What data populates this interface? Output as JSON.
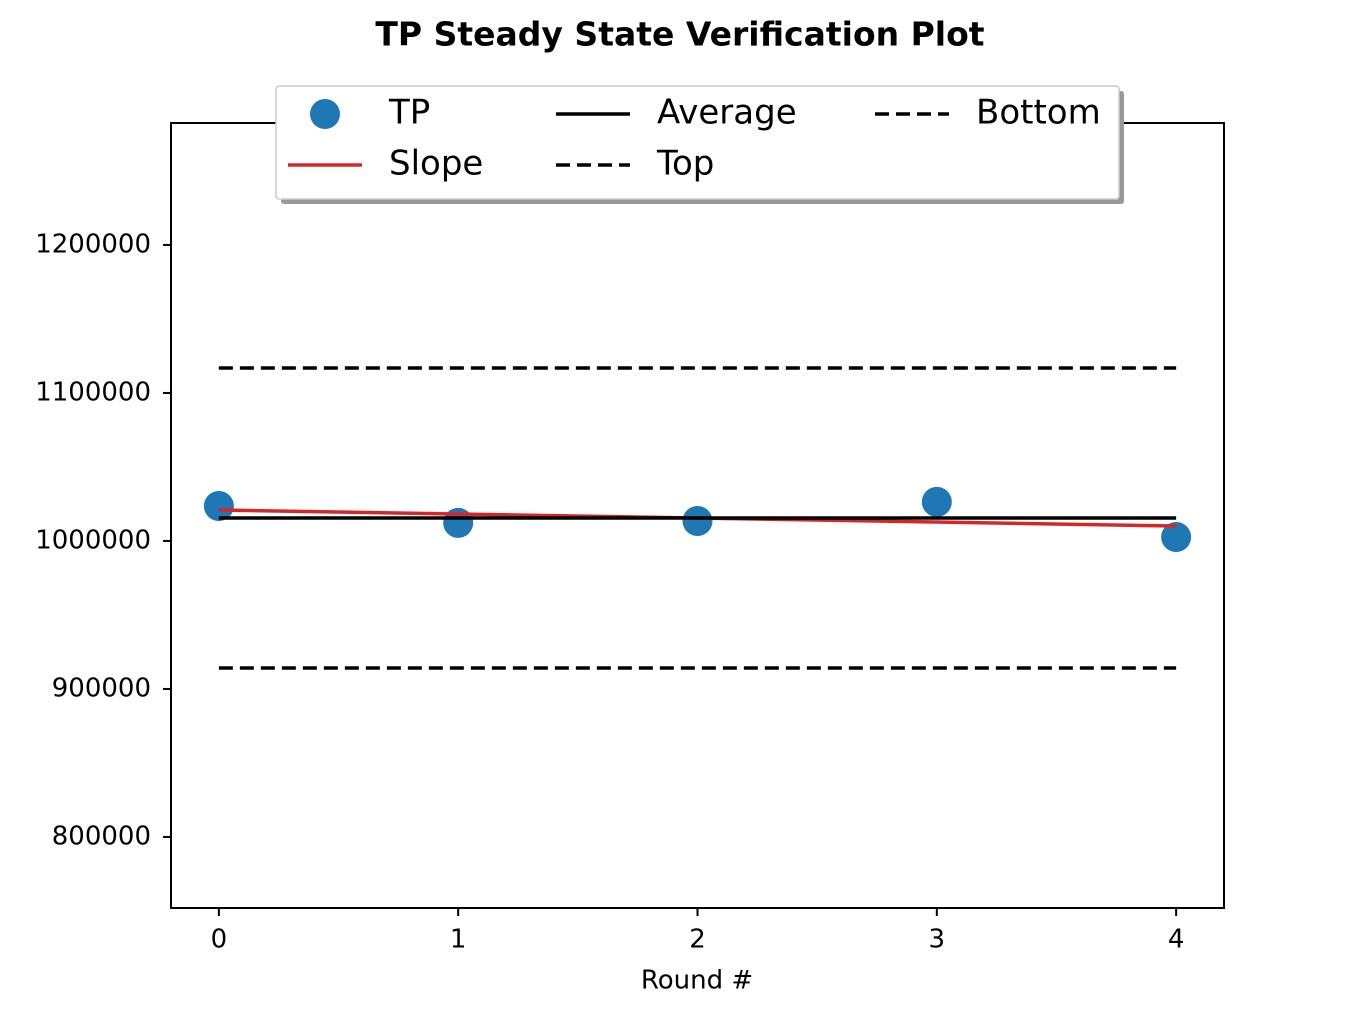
{
  "chart_data": {
    "type": "line",
    "title": "TP Steady State Verification Plot",
    "x_label": "Round #",
    "xlim": [
      -0.2,
      4.2
    ],
    "xticks": [
      0,
      1,
      2,
      3,
      4
    ],
    "ylim": [
      752000,
      1282400
    ],
    "yticks": [
      800000,
      900000,
      1000000,
      1100000,
      1200000
    ],
    "legend": "upper center",
    "series": [
      {
        "name": "TP",
        "style": "marker",
        "color": "#1f77b4",
        "x": [
          0,
          1,
          2,
          3,
          4
        ],
        "values": [
          1023600,
          1012200,
          1013500,
          1026400,
          1002700
        ]
      },
      {
        "name": "Slope",
        "style": "solid",
        "color": "#d62728",
        "x": [
          0,
          4
        ],
        "values": [
          1020900,
          1010100
        ]
      },
      {
        "name": "Average",
        "style": "solid",
        "color": "#000000",
        "x": [
          0,
          4
        ],
        "values": [
          1015500,
          1015500
        ]
      },
      {
        "name": "Top",
        "style": "dashed",
        "color": "#000000",
        "x": [
          0,
          4
        ],
        "values": [
          1116900,
          1116900
        ]
      },
      {
        "name": "Bottom",
        "style": "dashed",
        "color": "#000000",
        "x": [
          0,
          4
        ],
        "values": [
          914200,
          914200
        ]
      }
    ]
  }
}
